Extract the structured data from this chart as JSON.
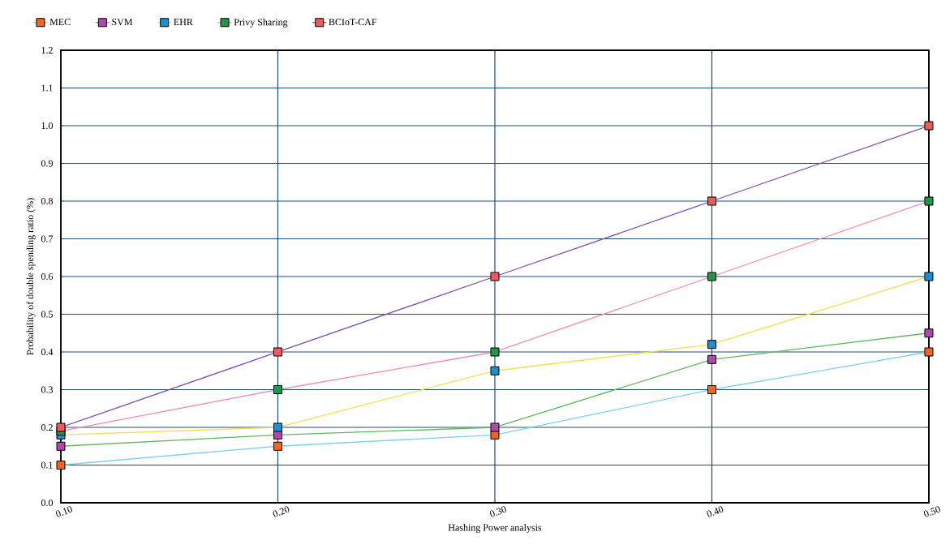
{
  "chart_data": {
    "type": "line",
    "xlabel": "Hashing Power analysis",
    "ylabel": "Probability of double spending ratio (%)",
    "x": [
      0.1,
      0.2,
      0.3,
      0.4,
      0.5
    ],
    "xlim": [
      0.1,
      0.5
    ],
    "xticks": [
      {
        "value": 0.1,
        "label": "0.10"
      },
      {
        "value": 0.2,
        "label": "0.20"
      },
      {
        "value": 0.3,
        "label": "0.30"
      },
      {
        "value": 0.4,
        "label": "0.40"
      },
      {
        "value": 0.5,
        "label": "0.50"
      }
    ],
    "ylim": [
      0,
      1.2
    ],
    "yticks": [
      {
        "value": 0,
        "label": "0.0"
      },
      0.1,
      0.2,
      0.3,
      0.4,
      0.5,
      0.6,
      0.7,
      0.8,
      0.9,
      {
        "value": 1.0,
        "label": "1.0"
      },
      1.1,
      1.2
    ],
    "grid": true,
    "legend": "top left",
    "marker": "square",
    "line_style": "solid",
    "series": [
      {
        "name": "MEC",
        "color": "#7fd0ef",
        "colors": [
          "#f26522",
          "#f26522",
          "#f26522",
          "#f26522",
          "#f26522"
        ],
        "values": [
          0.1,
          0.15,
          0.18,
          0.3,
          0.4
        ]
      },
      {
        "name": "SVM",
        "color": "#5cb85c",
        "colors": [
          "#b04aa8",
          "#b04aa8",
          "#b04aa8",
          "#b04aa8",
          "#b04aa8"
        ],
        "values": [
          0.15,
          0.18,
          0.2,
          0.38,
          0.45
        ]
      },
      {
        "name": "EHR",
        "color": "#f0e050",
        "colors": [
          "#1e90d0",
          "#1e90d0",
          "#1e90d0",
          "#1e90d0",
          "#1e90d0"
        ],
        "values": [
          0.18,
          0.2,
          0.35,
          0.42,
          0.6
        ]
      },
      {
        "name": "Privy Sharing",
        "color": "#f08cb0",
        "colors": [
          "#22964a",
          "#22964a",
          "#22964a",
          "#22964a",
          "#22964a"
        ],
        "values": [
          0.19,
          0.3,
          0.4,
          0.6,
          0.8
        ]
      },
      {
        "name": "BCIoT-CAF",
        "color": "#7b4fb0",
        "colors": [
          "#f05a5a",
          "#f05a5a",
          "#f05a5a",
          "#f05a5a",
          "#f05a5a"
        ],
        "values": [
          0.2,
          0.4,
          0.6,
          0.8,
          1.0
        ]
      }
    ]
  }
}
